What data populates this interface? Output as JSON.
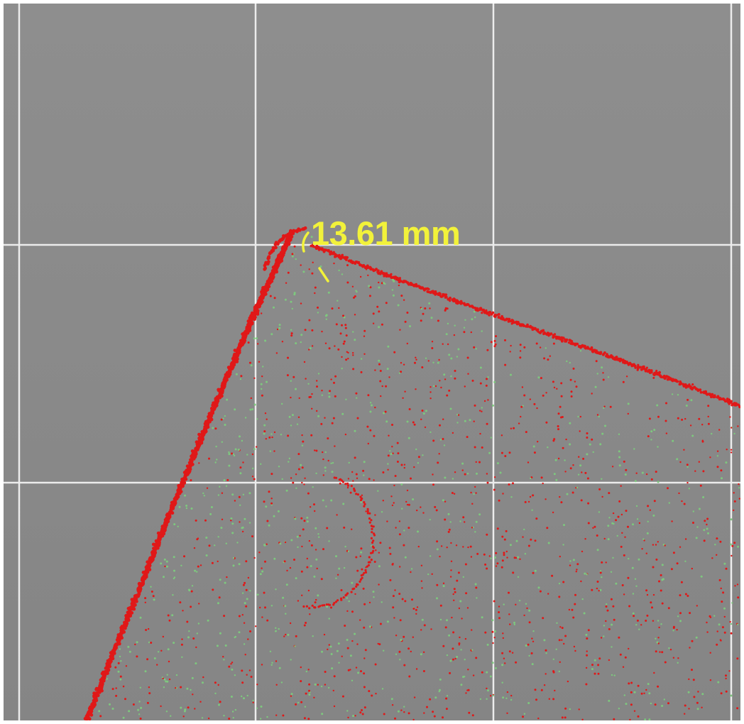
{
  "viewport": {
    "background_top": "#8e8e8e",
    "background_bottom": "#858585",
    "frame_color": "#ffffff",
    "grid_color": "#ececec",
    "grid_visible": true
  },
  "point_cloud": {
    "selected_color": "#e01818",
    "unselected_color": "#7ec87e"
  },
  "measurement": {
    "label": "13.61 mm",
    "label_color": "#f2f23a",
    "tool": "radius"
  }
}
